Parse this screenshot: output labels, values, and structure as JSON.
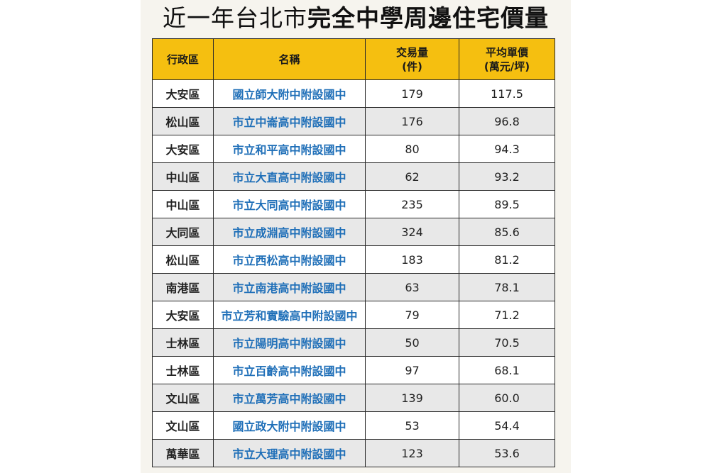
{
  "title": {
    "light": "近一年台北市",
    "bold": "完全中學周邊住宅價量"
  },
  "columns": {
    "district": "行政區",
    "name": "名稱",
    "volume_line1": "交易量",
    "volume_line2": "(件)",
    "price_line1": "平均單價",
    "price_line2": "(萬元/坪)"
  },
  "rows": [
    {
      "district": "大安區",
      "name": "國立師大附中附設國中",
      "volume": "179",
      "price": "117.5"
    },
    {
      "district": "松山區",
      "name": "市立中崙高中附設國中",
      "volume": "176",
      "price": "96.8"
    },
    {
      "district": "大安區",
      "name": "市立和平高中附設國中",
      "volume": "80",
      "price": "94.3"
    },
    {
      "district": "中山區",
      "name": "市立大直高中附設國中",
      "volume": "62",
      "price": "93.2"
    },
    {
      "district": "中山區",
      "name": "市立大同高中附設國中",
      "volume": "235",
      "price": "89.5"
    },
    {
      "district": "大同區",
      "name": "市立成淵高中附設國中",
      "volume": "324",
      "price": "85.6"
    },
    {
      "district": "松山區",
      "name": "市立西松高中附設國中",
      "volume": "183",
      "price": "81.2"
    },
    {
      "district": "南港區",
      "name": "市立南港高中附設國中",
      "volume": "63",
      "price": "78.1"
    },
    {
      "district": "大安區",
      "name": "市立芳和實驗高中附設國中",
      "volume": "79",
      "price": "71.2"
    },
    {
      "district": "士林區",
      "name": "市立陽明高中附設國中",
      "volume": "50",
      "price": "70.5"
    },
    {
      "district": "士林區",
      "name": "市立百齡高中附設國中",
      "volume": "97",
      "price": "68.1"
    },
    {
      "district": "文山區",
      "name": "市立萬芳高中附設國中",
      "volume": "139",
      "price": "60.0"
    },
    {
      "district": "文山區",
      "name": "國立政大附中附設國中",
      "volume": "53",
      "price": "54.4"
    },
    {
      "district": "萬華區",
      "name": "市立大理高中附設國中",
      "volume": "123",
      "price": "53.6"
    }
  ],
  "colors": {
    "header_fill": "#f5bf10",
    "school_name": "#1f6fb8",
    "row_alt": "#e8e8e8",
    "panel": "#f6f4ee"
  }
}
